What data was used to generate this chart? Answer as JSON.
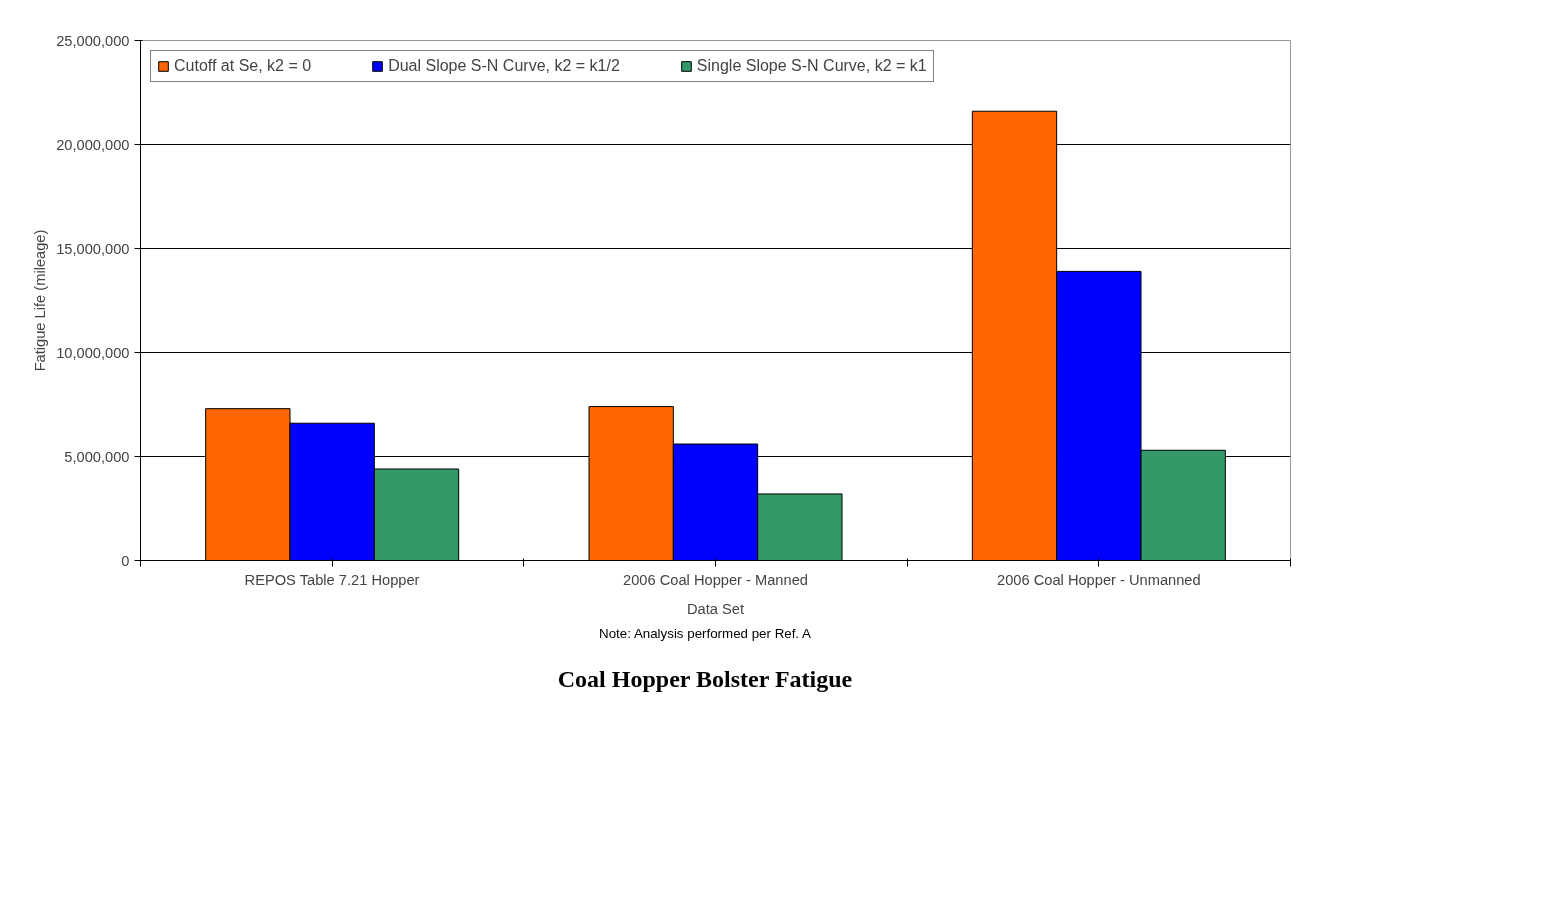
{
  "chart_data": {
    "type": "bar",
    "title": "Coal Hopper Bolster Fatigue",
    "xlabel": "Data Set",
    "ylabel": "Fatigue Life (mileage)",
    "categories": [
      "REPOS Table 7.21 Hopper",
      "2006 Coal Hopper - Manned",
      "2006 Coal Hopper - Unmanned"
    ],
    "series": [
      {
        "name": "Cutoff at Se, k2 = 0",
        "color": "#ff6600",
        "values": [
          7300000,
          7400000,
          21600000
        ]
      },
      {
        "name": "Dual Slope S-N Curve, k2 = k1/2",
        "color": "#0000ff",
        "values": [
          6600000,
          5600000,
          13900000
        ]
      },
      {
        "name": "Single Slope S-N Curve, k2 = k1",
        "color": "#339966",
        "values": [
          4400000,
          3200000,
          5300000
        ]
      }
    ],
    "ylim": [
      0,
      25000000
    ],
    "yticks": [
      {
        "value": 0,
        "label": "0"
      },
      {
        "value": 5000000,
        "label": "5,000,000"
      },
      {
        "value": 10000000,
        "label": "10,000,000"
      },
      {
        "value": 15000000,
        "label": "15,000,000"
      },
      {
        "value": 20000000,
        "label": "20,000,000"
      },
      {
        "value": 25000000,
        "label": "25,000,000"
      }
    ],
    "grid": "y",
    "legend": "top left",
    "annotations": [
      "Note: Analysis performed per Ref. A"
    ]
  }
}
